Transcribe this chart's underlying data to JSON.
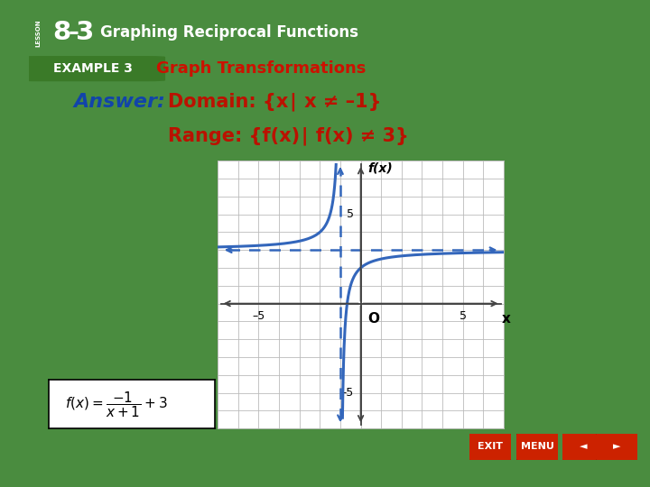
{
  "bg_outer": "#4a8c3f",
  "bg_header_dark": "#2a6b20",
  "bg_header_light": "#4aaa35",
  "bg_white": "#ffffff",
  "bg_example_row": "#f5f5f5",
  "border_gold": "#c8a020",
  "header_text_color": "#ffffff",
  "example_box_color": "#3a7a28",
  "example_label": "EXAMPLE 3",
  "example_title": "Graph Transformations",
  "example_title_color": "#cc1100",
  "answer_label": "Answer:",
  "answer_label_color": "#1144aa",
  "domain_text": "Domain: {x∣ x ≠ –1}",
  "range_text": "Range: {f(x)∣ f(x) ≠ 3}",
  "answer_text_color": "#bb1100",
  "curve_color": "#3366bb",
  "asymptote_color": "#3366bb",
  "grid_color": "#bbbbbb",
  "axis_color": "#444444",
  "xmin": -7,
  "xmax": 7,
  "ymin": -7,
  "ymax": 8,
  "vertical_asymptote": -1,
  "horizontal_asymptote": 3,
  "o_label": "O",
  "x_label": "x",
  "y_label": "f(x)",
  "nav_button_color": "#cc2200",
  "nav_button_dark": "#991100"
}
